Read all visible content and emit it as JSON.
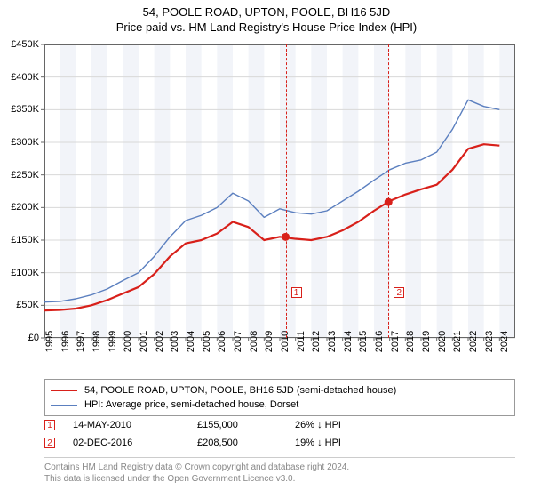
{
  "title": "54, POOLE ROAD, UPTON, POOLE, BH16 5JD",
  "subtitle": "Price paid vs. HM Land Registry's House Price Index (HPI)",
  "chart": {
    "type": "line",
    "background_color": "#ffffff",
    "alt_band_color": "#f2f4f9",
    "grid_color": "#d8d8d8",
    "axis_color": "#666666",
    "ylim": [
      0,
      450000
    ],
    "ytick_step": 50000,
    "ytick_labels": [
      "£0",
      "£50K",
      "£100K",
      "£150K",
      "£200K",
      "£250K",
      "£300K",
      "£350K",
      "£400K",
      "£450K"
    ],
    "x_start": 1995,
    "x_end": 2025,
    "xtick_labels": [
      "1995",
      "1996",
      "1997",
      "1998",
      "1999",
      "2000",
      "2001",
      "2002",
      "2003",
      "2004",
      "2005",
      "2006",
      "2007",
      "2008",
      "2009",
      "2010",
      "2011",
      "2012",
      "2013",
      "2014",
      "2015",
      "2016",
      "2017",
      "2018",
      "2019",
      "2020",
      "2021",
      "2022",
      "2023",
      "2024"
    ],
    "series": [
      {
        "name": "54, POOLE ROAD, UPTON, POOLE, BH16 5JD (semi-detached house)",
        "color": "#d8201a",
        "width": 2.2,
        "data": [
          [
            1995,
            42000
          ],
          [
            1996,
            43000
          ],
          [
            1997,
            45000
          ],
          [
            1998,
            50000
          ],
          [
            1999,
            58000
          ],
          [
            2000,
            68000
          ],
          [
            2001,
            78000
          ],
          [
            2002,
            98000
          ],
          [
            2003,
            125000
          ],
          [
            2004,
            145000
          ],
          [
            2005,
            150000
          ],
          [
            2006,
            160000
          ],
          [
            2007,
            178000
          ],
          [
            2008,
            170000
          ],
          [
            2009,
            150000
          ],
          [
            2010,
            155000
          ],
          [
            2011,
            152000
          ],
          [
            2012,
            150000
          ],
          [
            2013,
            155000
          ],
          [
            2014,
            165000
          ],
          [
            2015,
            178000
          ],
          [
            2016,
            195000
          ],
          [
            2016.9,
            208500
          ],
          [
            2017,
            210000
          ],
          [
            2018,
            220000
          ],
          [
            2019,
            228000
          ],
          [
            2020,
            235000
          ],
          [
            2021,
            258000
          ],
          [
            2022,
            290000
          ],
          [
            2023,
            297000
          ],
          [
            2024,
            295000
          ]
        ]
      },
      {
        "name": "HPI: Average price, semi-detached house, Dorset",
        "color": "#5b7fbf",
        "width": 1.4,
        "data": [
          [
            1995,
            55000
          ],
          [
            1996,
            56000
          ],
          [
            1997,
            60000
          ],
          [
            1998,
            66000
          ],
          [
            1999,
            75000
          ],
          [
            2000,
            88000
          ],
          [
            2001,
            100000
          ],
          [
            2002,
            125000
          ],
          [
            2003,
            155000
          ],
          [
            2004,
            180000
          ],
          [
            2005,
            188000
          ],
          [
            2006,
            200000
          ],
          [
            2007,
            222000
          ],
          [
            2008,
            210000
          ],
          [
            2009,
            185000
          ],
          [
            2010,
            198000
          ],
          [
            2011,
            192000
          ],
          [
            2012,
            190000
          ],
          [
            2013,
            195000
          ],
          [
            2014,
            210000
          ],
          [
            2015,
            225000
          ],
          [
            2016,
            242000
          ],
          [
            2017,
            258000
          ],
          [
            2018,
            268000
          ],
          [
            2019,
            273000
          ],
          [
            2020,
            285000
          ],
          [
            2021,
            320000
          ],
          [
            2022,
            365000
          ],
          [
            2023,
            355000
          ],
          [
            2024,
            350000
          ]
        ]
      }
    ],
    "sale_markers": [
      {
        "label": "1",
        "x": 2010.37,
        "color": "#d8201a",
        "box_y": 70000
      },
      {
        "label": "2",
        "x": 2016.92,
        "color": "#d8201a",
        "box_y": 70000
      }
    ],
    "point_markers": [
      {
        "x": 2010.37,
        "y": 155000,
        "color": "#d8201a"
      },
      {
        "x": 2016.92,
        "y": 208500,
        "color": "#d8201a"
      }
    ]
  },
  "legend": {
    "items": [
      {
        "color": "#d8201a",
        "width": 2.2,
        "label": "54, POOLE ROAD, UPTON, POOLE, BH16 5JD (semi-detached house)"
      },
      {
        "color": "#5b7fbf",
        "width": 1.4,
        "label": "HPI: Average price, semi-detached house, Dorset"
      }
    ]
  },
  "sales": [
    {
      "idx": "1",
      "color": "#d8201a",
      "date": "14-MAY-2010",
      "price": "£155,000",
      "hpi": "26% ↓ HPI"
    },
    {
      "idx": "2",
      "color": "#d8201a",
      "date": "02-DEC-2016",
      "price": "£208,500",
      "hpi": "19% ↓ HPI"
    }
  ],
  "footer": {
    "line1": "Contains HM Land Registry data © Crown copyright and database right 2024.",
    "line2": "This data is licensed under the Open Government Licence v3.0."
  }
}
